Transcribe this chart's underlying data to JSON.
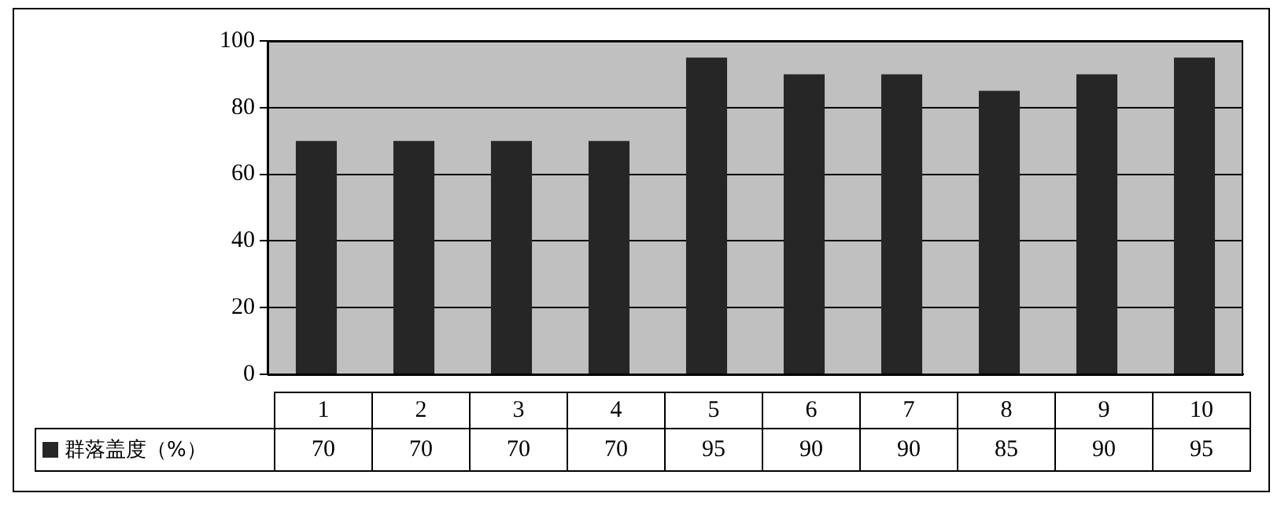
{
  "chart_data": {
    "type": "bar",
    "categories": [
      "1",
      "2",
      "3",
      "4",
      "5",
      "6",
      "7",
      "8",
      "9",
      "10"
    ],
    "series": [
      {
        "name": "群落盖度（%）",
        "color": "#262626",
        "values": [
          70,
          70,
          70,
          70,
          95,
          90,
          90,
          85,
          90,
          95
        ]
      }
    ],
    "ylim": [
      0,
      100
    ],
    "yticks": [
      0,
      20,
      40,
      60,
      80,
      100
    ],
    "grid": "y",
    "legend": "bottom",
    "data_labels": true
  }
}
